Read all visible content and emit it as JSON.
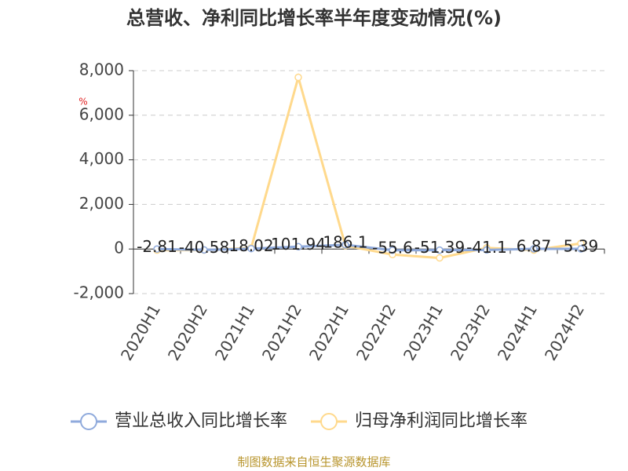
{
  "chart_data": {
    "type": "line",
    "title": "总营收、净利同比增长率半年度变动情况(%)",
    "y_unit": "%",
    "source": "制图数据来自恒生聚源数据库",
    "categories": [
      "2020H1",
      "2020H2",
      "2021H1",
      "2021H2",
      "2022H1",
      "2022H2",
      "2023H1",
      "2023H2",
      "2024H1",
      "2024H2"
    ],
    "series": [
      {
        "name": "营业总收入同比增长率",
        "color": "#8faadc",
        "values": [
          -2.81,
          -40.58,
          18.02,
          101.94,
          186.1,
          -55.6,
          -51.39,
          -41.1,
          6.87,
          5.39
        ],
        "show_labels": true
      },
      {
        "name": "归母净利润同比增长率",
        "color": "#ffd98c",
        "values": [
          -50,
          -50,
          50,
          7700,
          150,
          -250,
          -400,
          50,
          -50,
          250
        ],
        "show_labels": false
      }
    ],
    "ylim": [
      -2000,
      8000
    ],
    "yticks": [
      {
        "value": -2000,
        "label": "-2,000"
      },
      0,
      {
        "value": 2000,
        "label": "2,000"
      },
      {
        "value": 4000,
        "label": "4,000"
      },
      {
        "value": 6000,
        "label": "6,000"
      },
      {
        "value": 8000,
        "label": "8,000"
      }
    ],
    "grid": true
  }
}
